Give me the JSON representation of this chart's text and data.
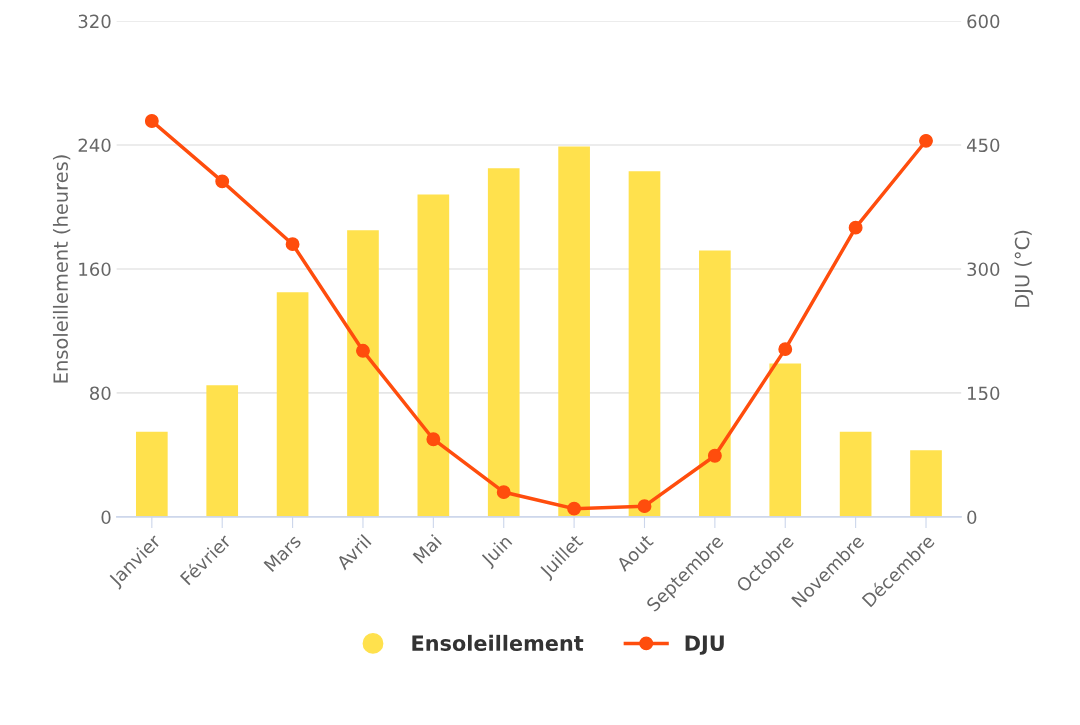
{
  "chart_data": {
    "type": "bar",
    "categories": [
      "Janvier",
      "Février",
      "Mars",
      "Avril",
      "Mai",
      "Juin",
      "Juillet",
      "Aout",
      "Septembre",
      "Octobre",
      "Novembre",
      "Décembre"
    ],
    "series": [
      {
        "name": "Ensoleillement",
        "color": "#ffe14d",
        "values": [
          55,
          85,
          145,
          185,
          208,
          225,
          239,
          223,
          172,
          99,
          55,
          43
        ]
      },
      {
        "name": "DJU",
        "type": "line",
        "axis": "y2",
        "color": "#ff4d0d",
        "marker": "circle",
        "values": [
          479,
          406,
          330,
          201,
          94,
          30,
          10,
          13,
          74,
          203,
          350,
          455
        ]
      }
    ],
    "ylabel": "Ensoleillement (heures)",
    "y2label": "DJU (°C)",
    "ylim": [
      0,
      320
    ],
    "yticks": [
      0,
      80,
      160,
      240,
      320
    ],
    "y2lim": [
      0,
      600
    ],
    "y2ticks": [
      0,
      150,
      300,
      450,
      600
    ],
    "grid": "y",
    "legend": "bottom"
  }
}
